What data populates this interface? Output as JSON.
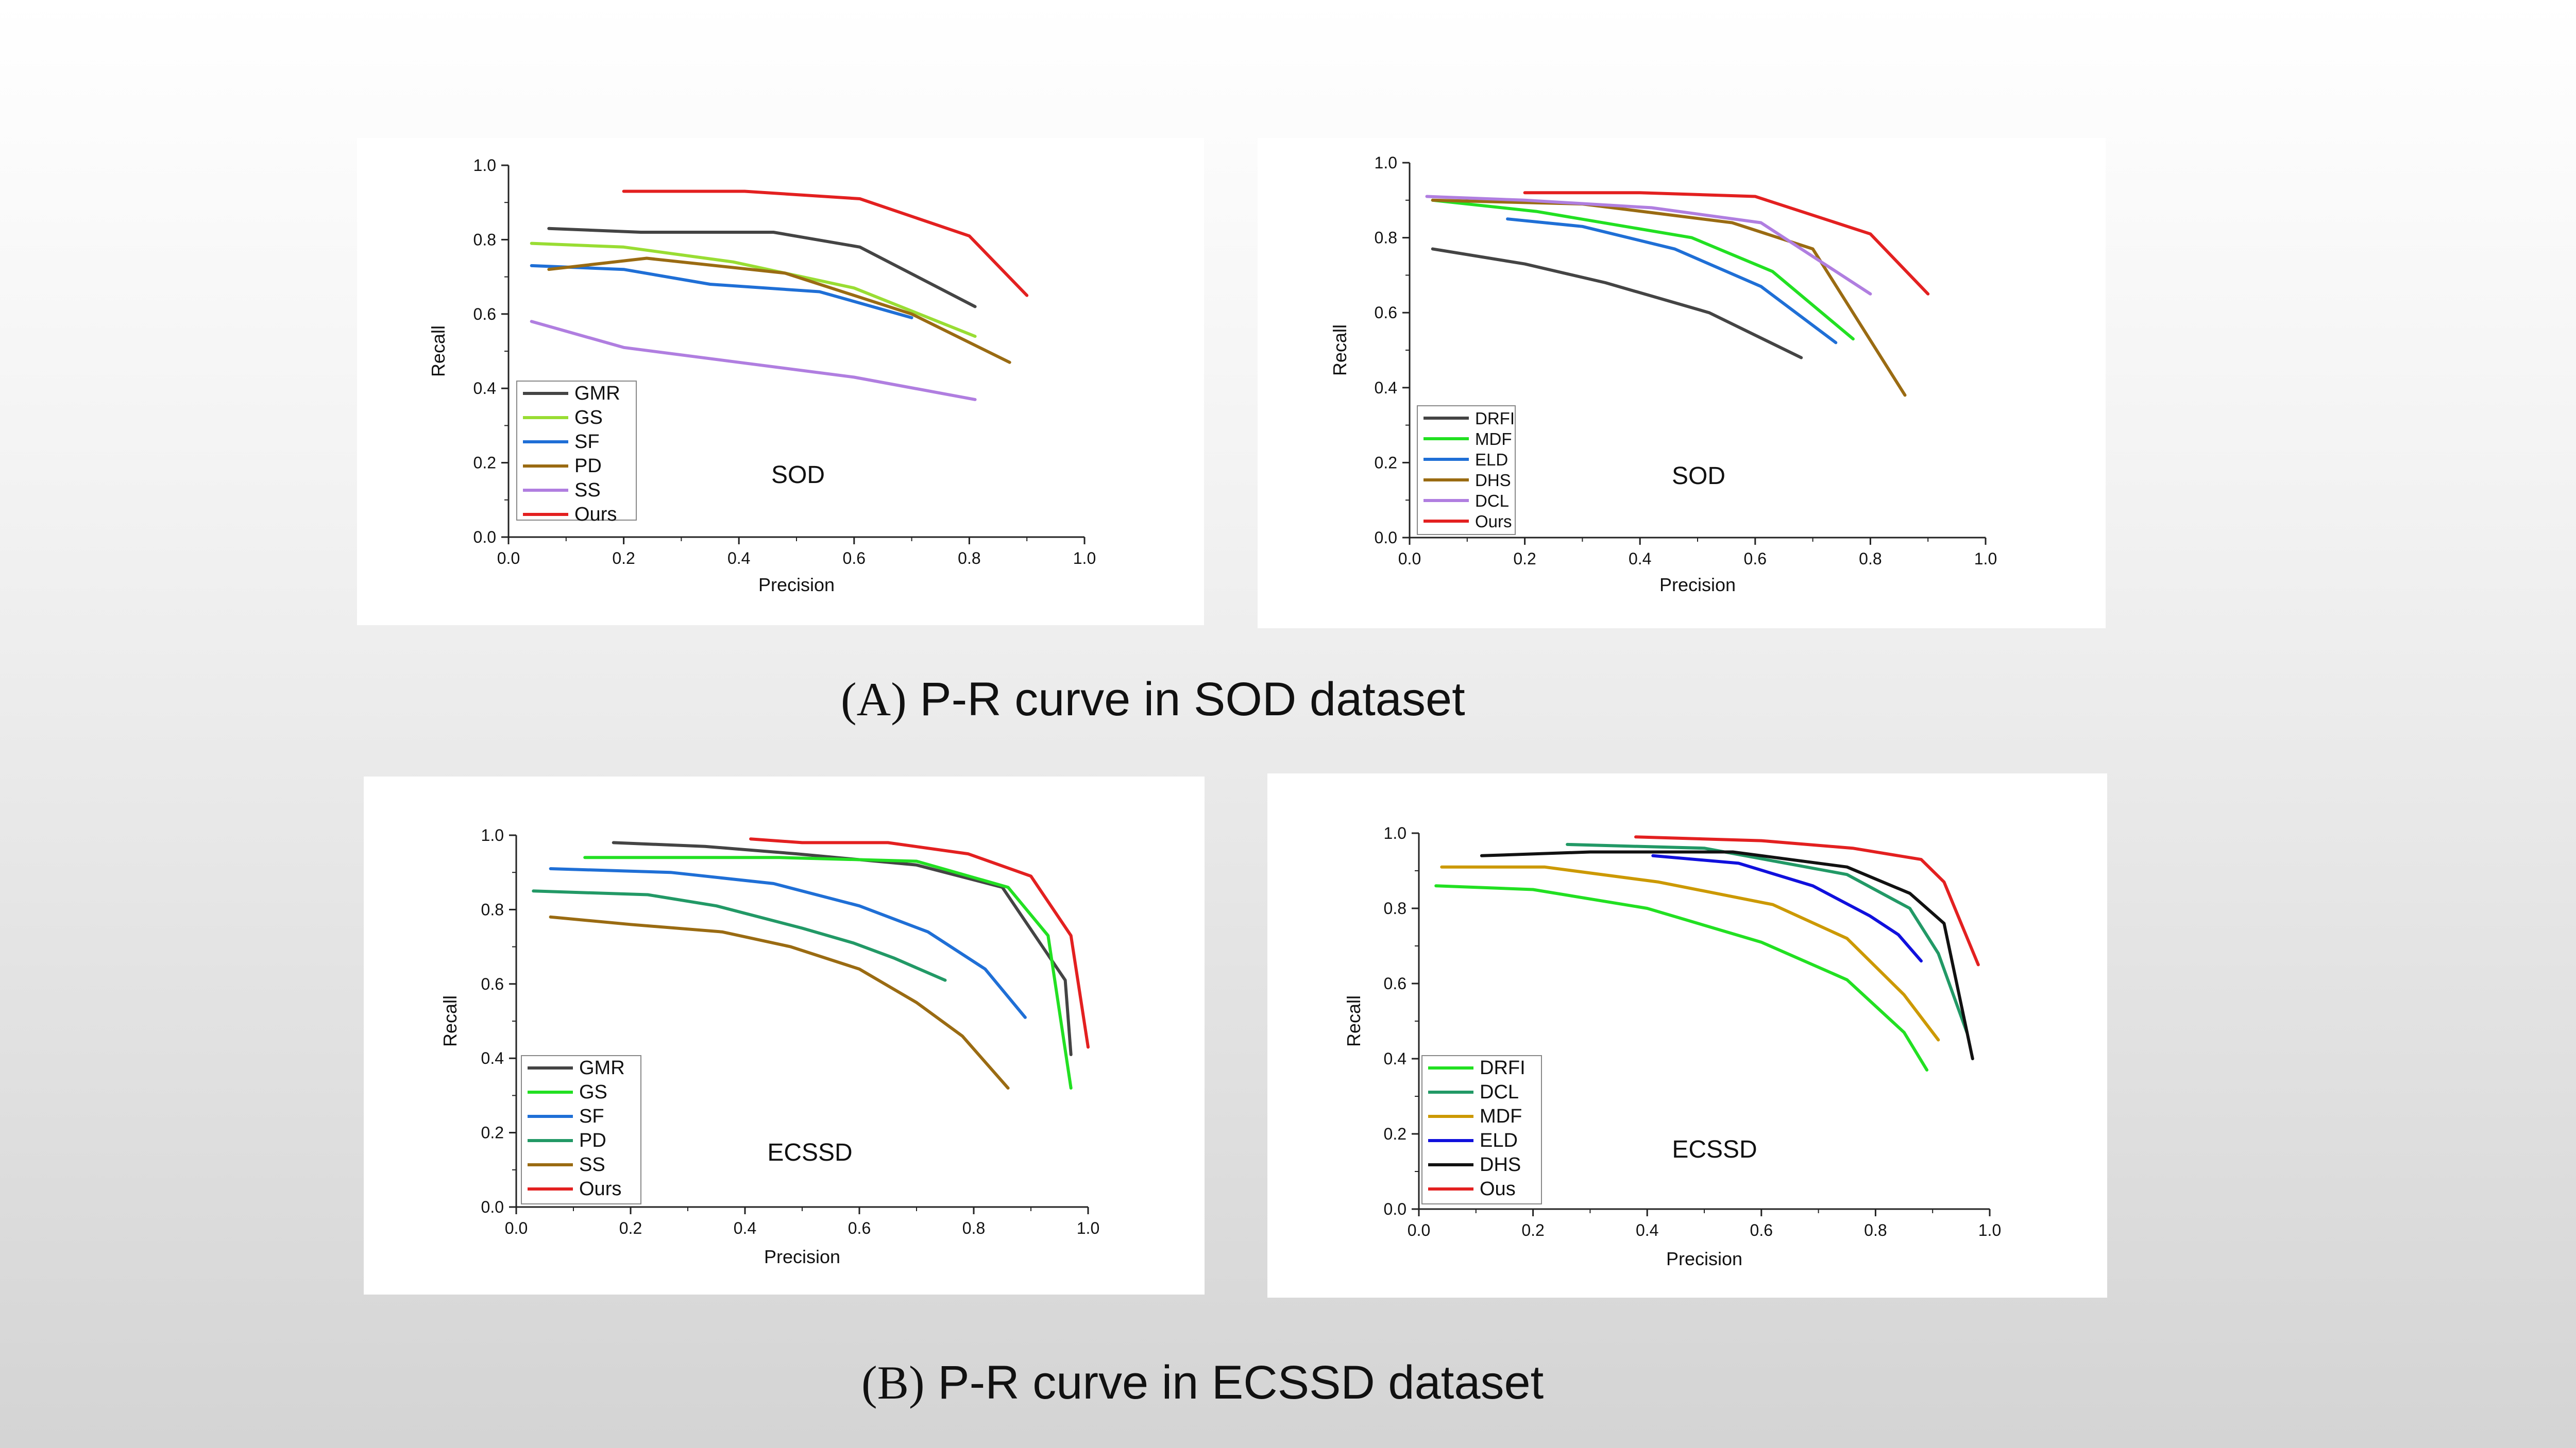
{
  "captions": {
    "a": {
      "letter": "(A)",
      "text": "P-R curve in SOD dataset"
    },
    "b": {
      "letter": "(B)",
      "text": "P-R curve in ECSSD dataset"
    }
  },
  "chart_data": [
    {
      "type": "line",
      "panel": "a1",
      "title": "SOD",
      "xlabel": "Precision",
      "ylabel": "Recall",
      "xlim": [
        0,
        1
      ],
      "ylim": [
        0,
        1
      ],
      "xticks": [
        "0.0",
        "0.2",
        "0.4",
        "0.6",
        "0.8",
        "1.0"
      ],
      "yticks": [
        "0.0",
        "0.2",
        "0.4",
        "0.6",
        "0.8",
        "1.0"
      ],
      "legend_position": "bottom-left",
      "series": [
        {
          "name": "GMR",
          "color": "#444444",
          "points": [
            [
              0.07,
              0.83
            ],
            [
              0.23,
              0.82
            ],
            [
              0.46,
              0.82
            ],
            [
              0.61,
              0.78
            ],
            [
              0.81,
              0.62
            ]
          ]
        },
        {
          "name": "GS",
          "color": "#99dd33",
          "points": [
            [
              0.04,
              0.79
            ],
            [
              0.2,
              0.78
            ],
            [
              0.39,
              0.74
            ],
            [
              0.6,
              0.67
            ],
            [
              0.81,
              0.54
            ]
          ]
        },
        {
          "name": "SF",
          "color": "#1f6fd6",
          "points": [
            [
              0.04,
              0.73
            ],
            [
              0.2,
              0.72
            ],
            [
              0.35,
              0.68
            ],
            [
              0.54,
              0.66
            ],
            [
              0.7,
              0.59
            ]
          ]
        },
        {
          "name": "PD",
          "color": "#9a6b12",
          "points": [
            [
              0.07,
              0.72
            ],
            [
              0.24,
              0.75
            ],
            [
              0.48,
              0.71
            ],
            [
              0.7,
              0.6
            ],
            [
              0.87,
              0.47
            ]
          ]
        },
        {
          "name": "SS",
          "color": "#b07ee0",
          "points": [
            [
              0.04,
              0.58
            ],
            [
              0.2,
              0.51
            ],
            [
              0.4,
              0.47
            ],
            [
              0.6,
              0.43
            ],
            [
              0.81,
              0.37
            ]
          ]
        },
        {
          "name": "Ours",
          "color": "#e32020",
          "points": [
            [
              0.2,
              0.93
            ],
            [
              0.41,
              0.93
            ],
            [
              0.61,
              0.91
            ],
            [
              0.8,
              0.81
            ],
            [
              0.9,
              0.65
            ]
          ]
        }
      ]
    },
    {
      "type": "line",
      "panel": "a2",
      "title": "SOD",
      "xlabel": "Precision",
      "ylabel": "Recall",
      "xlim": [
        0,
        1
      ],
      "ylim": [
        0,
        1
      ],
      "xticks": [
        "0.0",
        "0.2",
        "0.4",
        "0.6",
        "0.8",
        "1.0"
      ],
      "yticks": [
        "0.0",
        "0.2",
        "0.4",
        "0.6",
        "0.8",
        "1.0"
      ],
      "legend_position": "bottom-left",
      "series": [
        {
          "name": "DRFI",
          "color": "#444444",
          "points": [
            [
              0.04,
              0.77
            ],
            [
              0.2,
              0.73
            ],
            [
              0.34,
              0.68
            ],
            [
              0.52,
              0.6
            ],
            [
              0.68,
              0.48
            ]
          ]
        },
        {
          "name": "MDF",
          "color": "#22e022",
          "points": [
            [
              0.04,
              0.9
            ],
            [
              0.22,
              0.87
            ],
            [
              0.49,
              0.8
            ],
            [
              0.63,
              0.71
            ],
            [
              0.77,
              0.53
            ]
          ]
        },
        {
          "name": "ELD",
          "color": "#1f6fd6",
          "points": [
            [
              0.17,
              0.85
            ],
            [
              0.3,
              0.83
            ],
            [
              0.46,
              0.77
            ],
            [
              0.61,
              0.67
            ],
            [
              0.74,
              0.52
            ]
          ]
        },
        {
          "name": "DHS",
          "color": "#9a6b12",
          "points": [
            [
              0.04,
              0.9
            ],
            [
              0.3,
              0.89
            ],
            [
              0.56,
              0.84
            ],
            [
              0.7,
              0.77
            ],
            [
              0.86,
              0.38
            ]
          ]
        },
        {
          "name": "DCL",
          "color": "#b07ee0",
          "points": [
            [
              0.03,
              0.91
            ],
            [
              0.2,
              0.9
            ],
            [
              0.42,
              0.88
            ],
            [
              0.61,
              0.84
            ],
            [
              0.8,
              0.65
            ]
          ]
        },
        {
          "name": "Ours",
          "color": "#e32020",
          "points": [
            [
              0.2,
              0.92
            ],
            [
              0.4,
              0.92
            ],
            [
              0.6,
              0.91
            ],
            [
              0.8,
              0.81
            ],
            [
              0.9,
              0.65
            ]
          ]
        }
      ]
    },
    {
      "type": "line",
      "panel": "b1",
      "title": "ECSSD",
      "xlabel": "Precision",
      "ylabel": "Recall",
      "xlim": [
        0,
        1
      ],
      "ylim": [
        0,
        1
      ],
      "xticks": [
        "0.0",
        "0.2",
        "0.4",
        "0.6",
        "0.8",
        "1.0"
      ],
      "yticks": [
        "0.0",
        "0.2",
        "0.4",
        "0.6",
        "0.8",
        "1.0"
      ],
      "legend_position": "bottom-left",
      "series": [
        {
          "name": "GMR",
          "color": "#444444",
          "points": [
            [
              0.17,
              0.98
            ],
            [
              0.33,
              0.97
            ],
            [
              0.49,
              0.95
            ],
            [
              0.7,
              0.92
            ],
            [
              0.85,
              0.86
            ],
            [
              0.96,
              0.61
            ],
            [
              0.97,
              0.41
            ]
          ]
        },
        {
          "name": "GS",
          "color": "#22e022",
          "points": [
            [
              0.12,
              0.94
            ],
            [
              0.3,
              0.94
            ],
            [
              0.46,
              0.94
            ],
            [
              0.7,
              0.93
            ],
            [
              0.86,
              0.86
            ],
            [
              0.93,
              0.73
            ],
            [
              0.97,
              0.32
            ]
          ]
        },
        {
          "name": "SF",
          "color": "#1f6fd6",
          "points": [
            [
              0.06,
              0.91
            ],
            [
              0.27,
              0.9
            ],
            [
              0.45,
              0.87
            ],
            [
              0.6,
              0.81
            ],
            [
              0.72,
              0.74
            ],
            [
              0.82,
              0.64
            ],
            [
              0.89,
              0.51
            ]
          ]
        },
        {
          "name": "PD",
          "color": "#229966",
          "points": [
            [
              0.03,
              0.85
            ],
            [
              0.23,
              0.84
            ],
            [
              0.35,
              0.81
            ],
            [
              0.5,
              0.75
            ],
            [
              0.59,
              0.71
            ],
            [
              0.66,
              0.67
            ],
            [
              0.75,
              0.61
            ]
          ]
        },
        {
          "name": "SS",
          "color": "#9a6b12",
          "points": [
            [
              0.06,
              0.78
            ],
            [
              0.2,
              0.76
            ],
            [
              0.36,
              0.74
            ],
            [
              0.48,
              0.7
            ],
            [
              0.6,
              0.64
            ],
            [
              0.7,
              0.55
            ],
            [
              0.78,
              0.46
            ],
            [
              0.86,
              0.32
            ]
          ]
        },
        {
          "name": "Ours",
          "color": "#e32020",
          "points": [
            [
              0.41,
              0.99
            ],
            [
              0.5,
              0.98
            ],
            [
              0.65,
              0.98
            ],
            [
              0.79,
              0.95
            ],
            [
              0.9,
              0.89
            ],
            [
              0.97,
              0.73
            ],
            [
              1.0,
              0.43
            ]
          ]
        }
      ]
    },
    {
      "type": "line",
      "panel": "b2",
      "title": "ECSSD",
      "xlabel": "Precision",
      "ylabel": "Recall",
      "xlim": [
        0,
        1
      ],
      "ylim": [
        0,
        1
      ],
      "xticks": [
        "0.0",
        "0.2",
        "0.4",
        "0.6",
        "0.8",
        "1.0"
      ],
      "yticks": [
        "0.0",
        "0.2",
        "0.4",
        "0.6",
        "0.8",
        "1.0"
      ],
      "legend_position": "bottom-left",
      "series": [
        {
          "name": "DRFI",
          "color": "#22e022",
          "points": [
            [
              0.03,
              0.86
            ],
            [
              0.2,
              0.85
            ],
            [
              0.4,
              0.8
            ],
            [
              0.6,
              0.71
            ],
            [
              0.75,
              0.61
            ],
            [
              0.85,
              0.47
            ],
            [
              0.89,
              0.37
            ]
          ]
        },
        {
          "name": "DCL",
          "color": "#229966",
          "points": [
            [
              0.26,
              0.97
            ],
            [
              0.5,
              0.96
            ],
            [
              0.75,
              0.89
            ],
            [
              0.86,
              0.8
            ],
            [
              0.91,
              0.68
            ],
            [
              0.96,
              0.47
            ]
          ]
        },
        {
          "name": "MDF",
          "color": "#cc9900",
          "points": [
            [
              0.04,
              0.91
            ],
            [
              0.22,
              0.91
            ],
            [
              0.42,
              0.87
            ],
            [
              0.62,
              0.81
            ],
            [
              0.75,
              0.72
            ],
            [
              0.85,
              0.57
            ],
            [
              0.91,
              0.45
            ]
          ]
        },
        {
          "name": "ELD",
          "color": "#1010dd",
          "points": [
            [
              0.41,
              0.94
            ],
            [
              0.56,
              0.92
            ],
            [
              0.69,
              0.86
            ],
            [
              0.79,
              0.78
            ],
            [
              0.84,
              0.73
            ],
            [
              0.88,
              0.66
            ]
          ]
        },
        {
          "name": "DHS",
          "color": "#111111",
          "points": [
            [
              0.11,
              0.94
            ],
            [
              0.3,
              0.95
            ],
            [
              0.55,
              0.95
            ],
            [
              0.75,
              0.91
            ],
            [
              0.86,
              0.84
            ],
            [
              0.92,
              0.76
            ],
            [
              0.97,
              0.4
            ]
          ]
        },
        {
          "name": "Ous",
          "color": "#e32020",
          "points": [
            [
              0.38,
              0.99
            ],
            [
              0.6,
              0.98
            ],
            [
              0.76,
              0.96
            ],
            [
              0.88,
              0.93
            ],
            [
              0.92,
              0.87
            ],
            [
              0.98,
              0.65
            ]
          ]
        }
      ]
    }
  ]
}
